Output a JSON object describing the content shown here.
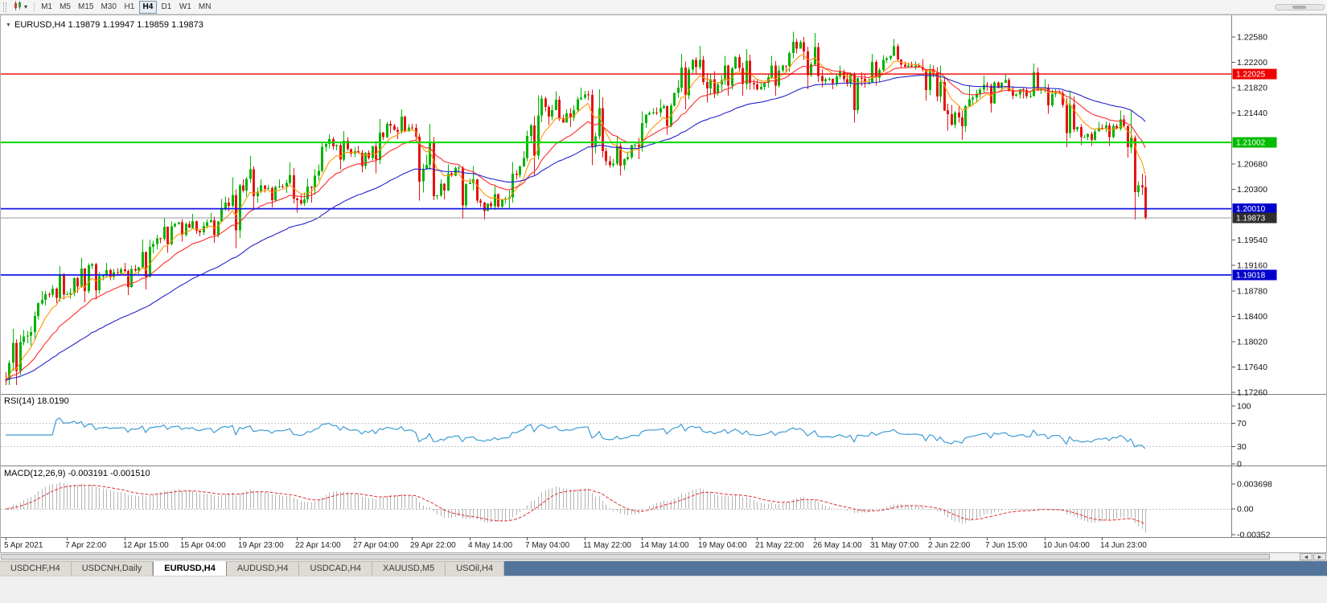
{
  "icons": {
    "caret_down": "▾",
    "triangle_collapse": "▼",
    "arrow_left": "◄",
    "arrow_right": "►"
  },
  "toolbar": {
    "timeframes": [
      "M1",
      "M5",
      "M15",
      "M30",
      "H1",
      "H4",
      "D1",
      "W1",
      "MN"
    ],
    "active": "H4"
  },
  "symbol_header": {
    "symbol": "EURUSD,H4",
    "open": "1.19879",
    "high": "1.19947",
    "low": "1.19859",
    "close": "1.19873"
  },
  "tabs": {
    "items": [
      "USDCHF,H4",
      "USDCNH,Daily",
      "EURUSD,H4",
      "AUDUSD,H4",
      "USDCAD,H4",
      "XAUUSD,M5",
      "USOil,H4"
    ],
    "active_index": 2
  },
  "chart_data": {
    "type": "candlestick",
    "symbol": "EURUSD",
    "timeframe": "H4",
    "current_ohlc": {
      "open": 1.19879,
      "high": 1.19947,
      "low": 1.19859,
      "close": 1.19873
    },
    "colors": {
      "up": "#00b400",
      "down": "#e51414",
      "grid": "#c0c0c0",
      "axis_text": "#111111"
    },
    "price_ticks": [
      {
        "label": "1.22580",
        "price": 1.2258
      },
      {
        "label": "1.22200",
        "price": 1.222
      },
      {
        "label": "1.21820",
        "price": 1.2182
      },
      {
        "label": "1.21440",
        "price": 1.2144
      },
      {
        "label": "1.20680",
        "price": 1.2068
      },
      {
        "label": "1.20300",
        "price": 1.203
      },
      {
        "label": "1.19540",
        "price": 1.1954
      },
      {
        "label": "1.19160",
        "price": 1.1916
      },
      {
        "label": "1.18780",
        "price": 1.1878
      },
      {
        "label": "1.18400",
        "price": 1.184
      },
      {
        "label": "1.18020",
        "price": 1.1802
      },
      {
        "label": "1.17640",
        "price": 1.1764
      },
      {
        "label": "1.17260",
        "price": 1.1726
      }
    ],
    "h_lines": [
      {
        "label": "1.22025",
        "price": 1.22025,
        "color": "#ee0000",
        "width": 1.4,
        "box": "#ee0000"
      },
      {
        "label": "1.21002",
        "price": 1.21002,
        "color": "#00d800",
        "width": 2,
        "box": "#00bb00"
      },
      {
        "label": "1.20010",
        "price": 1.2001,
        "color": "#1414e6",
        "width": 1.8,
        "box": "#0000cc"
      },
      {
        "label": "1.19873",
        "price": 1.19873,
        "color": "#9a9a9a",
        "width": 1,
        "box": "#2e2e2e"
      },
      {
        "label": "1.19018",
        "price": 1.19018,
        "color": "#1414e6",
        "width": 1.8,
        "box": "#0000cc"
      }
    ],
    "moving_averages": [
      {
        "period": 8,
        "color": "#ff9500"
      },
      {
        "period": 21,
        "color": "#ff2a2a"
      },
      {
        "period": 55,
        "color": "#2222cc"
      }
    ],
    "time_labels": [
      {
        "text": "5 Apr 2021",
        "bar": 0
      },
      {
        "text": "7 Apr 22:00",
        "bar": 17
      },
      {
        "text": "12 Apr 15:00",
        "bar": 33
      },
      {
        "text": "15 Apr 04:00",
        "bar": 49
      },
      {
        "text": "19 Apr 23:00",
        "bar": 65
      },
      {
        "text": "22 Apr 14:00",
        "bar": 81
      },
      {
        "text": "27 Apr 04:00",
        "bar": 97
      },
      {
        "text": "29 Apr 22:00",
        "bar": 113
      },
      {
        "text": "4 May 14:00",
        "bar": 129
      },
      {
        "text": "7 May 04:00",
        "bar": 145
      },
      {
        "text": "11 May 22:00",
        "bar": 161
      },
      {
        "text": "14 May 14:00",
        "bar": 177
      },
      {
        "text": "19 May 04:00",
        "bar": 193
      },
      {
        "text": "21 May 22:00",
        "bar": 209
      },
      {
        "text": "26 May 14:00",
        "bar": 225
      },
      {
        "text": "31 May 07:00",
        "bar": 241
      },
      {
        "text": "2 Jun 22:00",
        "bar": 257
      },
      {
        "text": "7 Jun 15:00",
        "bar": 273
      },
      {
        "text": "10 Jun 04:00",
        "bar": 289
      },
      {
        "text": "14 Jun 23:00",
        "bar": 305
      }
    ],
    "bars_per_day": 6,
    "daily_ohlc": [
      {
        "d": "5 Apr",
        "o": 1.1745,
        "h": 1.1821,
        "l": 1.1737,
        "c": 1.181
      },
      {
        "d": "6 Apr",
        "o": 1.181,
        "h": 1.1878,
        "l": 1.1796,
        "c": 1.1873
      },
      {
        "d": "7 Apr",
        "o": 1.1873,
        "h": 1.1915,
        "l": 1.186,
        "c": 1.1873
      },
      {
        "d": "8 Apr",
        "o": 1.1873,
        "h": 1.1928,
        "l": 1.1861,
        "c": 1.1916
      },
      {
        "d": "9 Apr",
        "o": 1.1916,
        "h": 1.192,
        "l": 1.1865,
        "c": 1.1899
      },
      {
        "d": "12 Apr",
        "o": 1.1899,
        "h": 1.192,
        "l": 1.1872,
        "c": 1.1911
      },
      {
        "d": "13 Apr",
        "o": 1.1911,
        "h": 1.1955,
        "l": 1.188,
        "c": 1.1948
      },
      {
        "d": "14 Apr",
        "o": 1.1948,
        "h": 1.1987,
        "l": 1.1935,
        "c": 1.1978
      },
      {
        "d": "15 Apr",
        "o": 1.1978,
        "h": 1.1993,
        "l": 1.1952,
        "c": 1.1968
      },
      {
        "d": "16 Apr",
        "o": 1.1968,
        "h": 1.1995,
        "l": 1.195,
        "c": 1.1982
      },
      {
        "d": "19 Apr",
        "o": 1.1982,
        "h": 1.2048,
        "l": 1.1942,
        "c": 1.2036
      },
      {
        "d": "20 Apr",
        "o": 1.2036,
        "h": 1.208,
        "l": 1.2,
        "c": 1.2036
      },
      {
        "d": "21 Apr",
        "o": 1.2036,
        "h": 1.2045,
        "l": 1.2003,
        "c": 1.2034
      },
      {
        "d": "22 Apr",
        "o": 1.2034,
        "h": 1.207,
        "l": 1.1995,
        "c": 1.2015
      },
      {
        "d": "23 Apr",
        "o": 1.2015,
        "h": 1.21,
        "l": 1.201,
        "c": 1.2098
      },
      {
        "d": "26 Apr",
        "o": 1.2098,
        "h": 1.2117,
        "l": 1.206,
        "c": 1.209
      },
      {
        "d": "27 Apr",
        "o": 1.209,
        "h": 1.2095,
        "l": 1.2055,
        "c": 1.2077
      },
      {
        "d": "28 Apr",
        "o": 1.2077,
        "h": 1.2135,
        "l": 1.2054,
        "c": 1.2125
      },
      {
        "d": "29 Apr",
        "o": 1.2125,
        "h": 1.215,
        "l": 1.2105,
        "c": 1.2122
      },
      {
        "d": "30 Apr",
        "o": 1.2122,
        "h": 1.2128,
        "l": 1.2013,
        "c": 1.202
      },
      {
        "d": "3 May",
        "o": 1.202,
        "h": 1.2067,
        "l": 1.2015,
        "c": 1.2062
      },
      {
        "d": "4 May",
        "o": 1.2062,
        "h": 1.2065,
        "l": 1.1986,
        "c": 1.2013
      },
      {
        "d": "5 May",
        "o": 1.2013,
        "h": 1.2035,
        "l": 1.1985,
        "c": 1.2004
      },
      {
        "d": "6 May",
        "o": 1.2004,
        "h": 1.2071,
        "l": 1.2,
        "c": 1.2064
      },
      {
        "d": "7 May",
        "o": 1.2064,
        "h": 1.2171,
        "l": 1.205,
        "c": 1.2166
      },
      {
        "d": "10 May",
        "o": 1.2166,
        "h": 1.2177,
        "l": 1.2126,
        "c": 1.213
      },
      {
        "d": "11 May",
        "o": 1.213,
        "h": 1.2182,
        "l": 1.2123,
        "c": 1.2172
      },
      {
        "d": "12 May",
        "o": 1.2172,
        "h": 1.218,
        "l": 1.2066,
        "c": 1.2072
      },
      {
        "d": "13 May",
        "o": 1.2072,
        "h": 1.211,
        "l": 1.2051,
        "c": 1.2078
      },
      {
        "d": "14 May",
        "o": 1.2078,
        "h": 1.2147,
        "l": 1.2075,
        "c": 1.2144
      },
      {
        "d": "17 May",
        "o": 1.2144,
        "h": 1.2165,
        "l": 1.2112,
        "c": 1.2155
      },
      {
        "d": "18 May",
        "o": 1.2155,
        "h": 1.2233,
        "l": 1.215,
        "c": 1.2224
      },
      {
        "d": "19 May",
        "o": 1.2224,
        "h": 1.2245,
        "l": 1.216,
        "c": 1.2174
      },
      {
        "d": "20 May",
        "o": 1.2174,
        "h": 1.223,
        "l": 1.217,
        "c": 1.2228
      },
      {
        "d": "21 May",
        "o": 1.2228,
        "h": 1.224,
        "l": 1.217,
        "c": 1.218
      },
      {
        "d": "24 May",
        "o": 1.218,
        "h": 1.223,
        "l": 1.217,
        "c": 1.2208
      },
      {
        "d": "25 May",
        "o": 1.2208,
        "h": 1.2266,
        "l": 1.2205,
        "c": 1.225
      },
      {
        "d": "26 May",
        "o": 1.225,
        "h": 1.2264,
        "l": 1.218,
        "c": 1.2192
      },
      {
        "d": "27 May",
        "o": 1.2192,
        "h": 1.2215,
        "l": 1.218,
        "c": 1.2195
      },
      {
        "d": "28 May",
        "o": 1.2195,
        "h": 1.2205,
        "l": 1.213,
        "c": 1.219
      },
      {
        "d": "31 May",
        "o": 1.219,
        "h": 1.2233,
        "l": 1.2185,
        "c": 1.2226
      },
      {
        "d": "1 Jun",
        "o": 1.2226,
        "h": 1.2255,
        "l": 1.2212,
        "c": 1.2215
      },
      {
        "d": "2 Jun",
        "o": 1.2215,
        "h": 1.2225,
        "l": 1.2163,
        "c": 1.221
      },
      {
        "d": "3 Jun",
        "o": 1.221,
        "h": 1.2215,
        "l": 1.2118,
        "c": 1.2127
      },
      {
        "d": "4 Jun",
        "o": 1.2127,
        "h": 1.2185,
        "l": 1.2104,
        "c": 1.2167
      },
      {
        "d": "7 Jun",
        "o": 1.2167,
        "h": 1.22,
        "l": 1.2145,
        "c": 1.219
      },
      {
        "d": "8 Jun",
        "o": 1.219,
        "h": 1.2203,
        "l": 1.2165,
        "c": 1.2172
      },
      {
        "d": "9 Jun",
        "o": 1.2172,
        "h": 1.2218,
        "l": 1.2166,
        "c": 1.2178
      },
      {
        "d": "10 Jun",
        "o": 1.2178,
        "h": 1.2195,
        "l": 1.2143,
        "c": 1.2174
      },
      {
        "d": "11 Jun",
        "o": 1.2174,
        "h": 1.2178,
        "l": 1.2093,
        "c": 1.2108
      },
      {
        "d": "14 Jun",
        "o": 1.2108,
        "h": 1.2131,
        "l": 1.2095,
        "c": 1.212
      },
      {
        "d": "15 Jun",
        "o": 1.212,
        "h": 1.2148,
        "l": 1.2095,
        "c": 1.2125
      },
      {
        "d": "16 Jun",
        "o": 1.2125,
        "h": 1.2148,
        "l": 1.1985,
        "c": 1.19873
      }
    ],
    "rsi": {
      "name": "RSI(14)",
      "value": "18.0190",
      "period": 14,
      "color": "#3d9bd6",
      "levels": [
        "100",
        "70",
        "30",
        "0"
      ],
      "dashed_levels": [
        70,
        30
      ]
    },
    "macd": {
      "name": "MACD(12,26,9)",
      "value": "-0.003191 -0.001510",
      "fast": 12,
      "slow": 26,
      "signal": 9,
      "hist_color": "#b4b4b4",
      "signal_color": "#e03030",
      "scale_labels": [
        {
          "label": "0.003698",
          "value": 0.003698
        },
        {
          "label": "0.00",
          "value": 0
        },
        {
          "label": "-0.00352",
          "value": -0.00352
        }
      ]
    }
  }
}
